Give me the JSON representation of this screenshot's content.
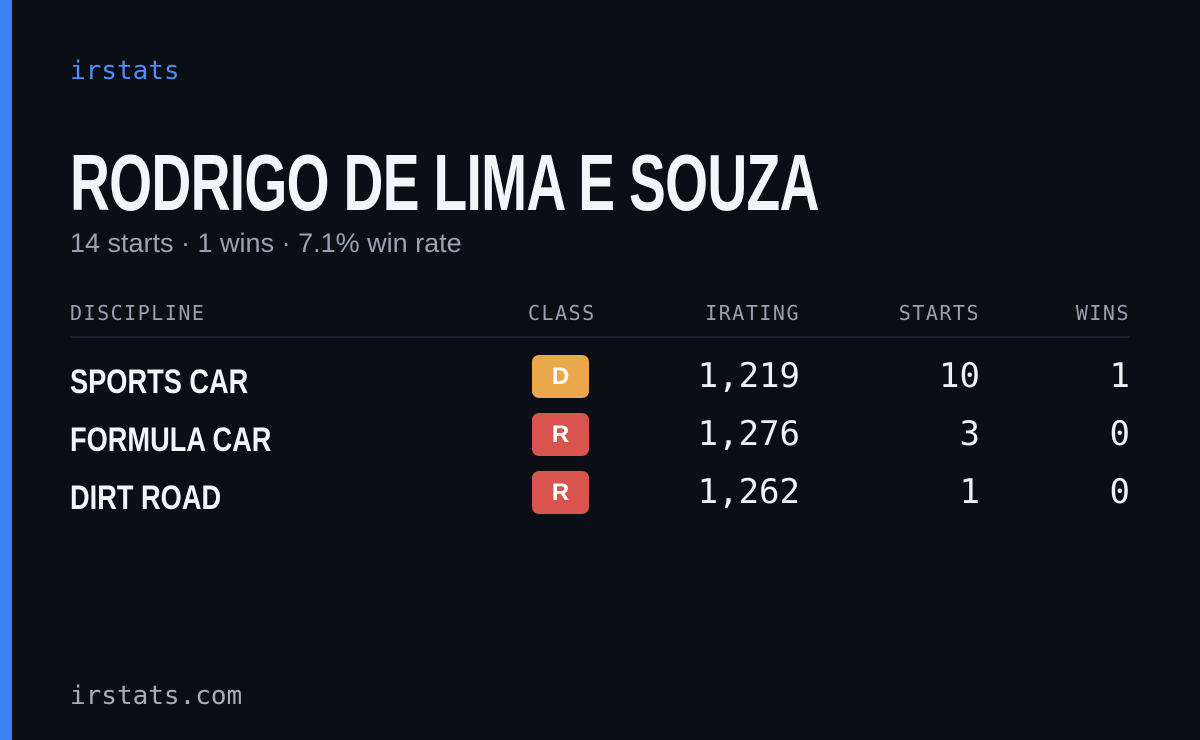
{
  "brand": "irstats",
  "driver": {
    "name": "RODRIGO DE LIMA E SOUZA",
    "summary": "14 starts · 1 wins · 7.1% win rate"
  },
  "table": {
    "headers": [
      "DISCIPLINE",
      "CLASS",
      "IRATING",
      "STARTS",
      "WINS"
    ],
    "rows": [
      {
        "discipline": "SPORTS CAR",
        "class": "D",
        "class_color": "#e9a94b",
        "irating": "1,219",
        "starts": 10,
        "wins": 1
      },
      {
        "discipline": "FORMULA CAR",
        "class": "R",
        "class_color": "#d9534f",
        "irating": "1,276",
        "starts": 3,
        "wins": 0
      },
      {
        "discipline": "DIRT ROAD",
        "class": "R",
        "class_color": "#d9534f",
        "irating": "1,262",
        "starts": 1,
        "wins": 0
      }
    ]
  },
  "footer": "irstats.com"
}
